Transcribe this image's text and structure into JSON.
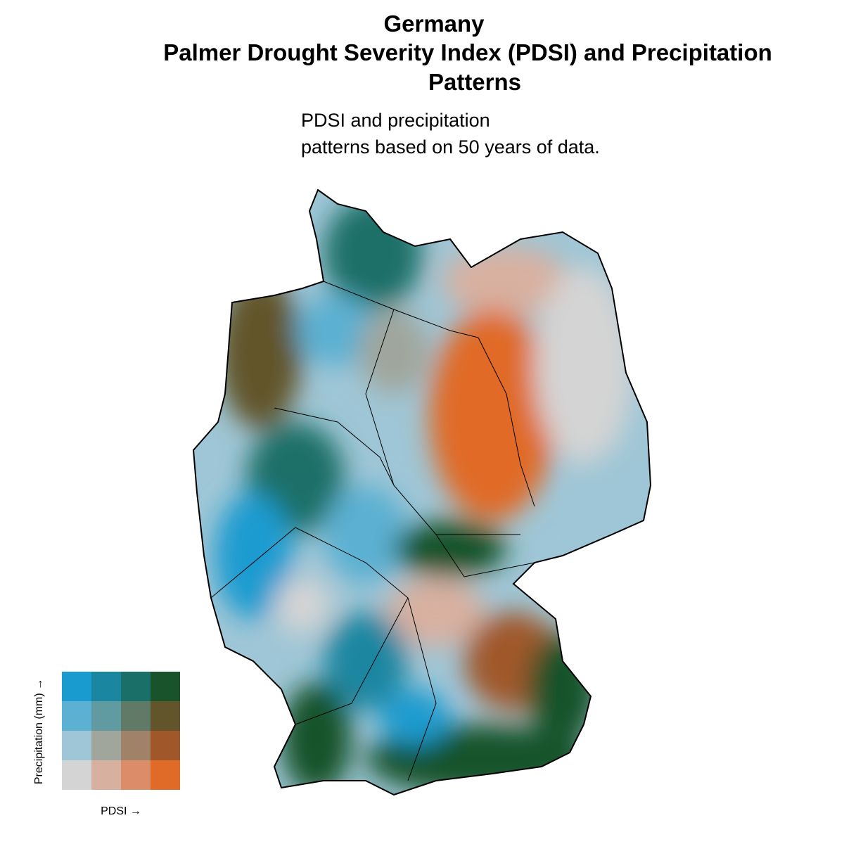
{
  "header": {
    "title": [
      "Germany",
      "Palmer Drought Severity Index (PDSI) and Precipitation",
      "Patterns"
    ],
    "subtitle": [
      "PDSI and precipitation",
      "patterns based on 50 years of data."
    ]
  },
  "legend": {
    "y_label": "Precipitation (mm) →",
    "x_label": "PDSI →",
    "colors": [
      [
        "#1a9bd0",
        "#1a86a0",
        "#1a7068",
        "#19532c"
      ],
      [
        "#5cb0d2",
        "#5f9ba0",
        "#617a68",
        "#62552c"
      ],
      [
        "#9fc6d6",
        "#a0a69c",
        "#a08268",
        "#a0582a"
      ],
      [
        "#d4d4d4",
        "#d8b0a0",
        "#dc8c68",
        "#e06a28"
      ]
    ]
  }
}
